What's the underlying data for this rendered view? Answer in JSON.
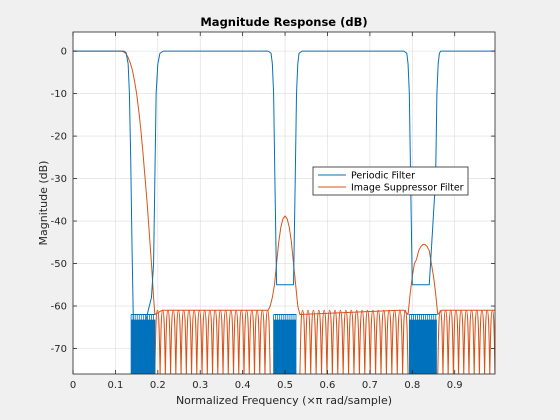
{
  "chart_data": {
    "type": "line",
    "title": "Magnitude Response (dB)",
    "xlabel": "Normalized Frequency (×π rad/sample)",
    "ylabel": "Magnitude (dB)",
    "xlim": [
      0,
      0.995
    ],
    "ylim": [
      -76,
      4.5
    ],
    "xticks": [
      0,
      0.1,
      0.2,
      0.3,
      0.4,
      0.5,
      0.6,
      0.7,
      0.8,
      0.9
    ],
    "xtick_labels": [
      "0",
      "0.1",
      "0.2",
      "0.3",
      "0.4",
      "0.5",
      "0.6",
      "0.7",
      "0.8",
      "0.9"
    ],
    "yticks": [
      0,
      -10,
      -20,
      -30,
      -40,
      -50,
      -60,
      -70
    ],
    "ytick_labels": [
      "0",
      "-10",
      "-20",
      "-30",
      "-40",
      "-50",
      "-60",
      "-70"
    ],
    "grid": true,
    "legend_position": "right",
    "series": [
      {
        "name": "Periodic Filter",
        "color": "#0072bd",
        "x": [
          0,
          0.12,
          0.125,
          0.13,
          0.133,
          0.136,
          0.139,
          0.142,
          0.145,
          0.175,
          0.185,
          0.19,
          0.193,
          0.196,
          0.2,
          0.205,
          0.213,
          0.22,
          0.46,
          0.467,
          0.47,
          0.473,
          0.476,
          0.48,
          0.52,
          0.524,
          0.527,
          0.53,
          0.533,
          0.54,
          0.78,
          0.787,
          0.79,
          0.793,
          0.796,
          0.8,
          0.84,
          0.855,
          0.858,
          0.861,
          0.864,
          0.867,
          0.875,
          0.885,
          0.995
        ],
        "y": [
          0,
          0,
          -0.3,
          -3,
          -10,
          -25,
          -45,
          -62,
          -76,
          -62,
          -58,
          -50,
          -30,
          -10,
          -3,
          -0.5,
          0,
          0,
          0,
          -0.5,
          -3,
          -10,
          -30,
          -55,
          -55,
          -30,
          -10,
          -3,
          -0.5,
          0,
          0,
          -0.5,
          -3,
          -10,
          -30,
          -55,
          -55,
          -30,
          -10,
          -3,
          -0.5,
          0,
          0,
          0,
          0
        ]
      },
      {
        "name": "Image Suppressor Filter",
        "color": "#d95319",
        "x": [
          0,
          0.115,
          0.12,
          0.125,
          0.13,
          0.135,
          0.14,
          0.145,
          0.15,
          0.155,
          0.16,
          0.165,
          0.17,
          0.175,
          0.18,
          0.185,
          0.19,
          0.193,
          0.21,
          0.45,
          0.46,
          0.465,
          0.47,
          0.475,
          0.48,
          0.485,
          0.49,
          0.495,
          0.5,
          0.505,
          0.51,
          0.515,
          0.52,
          0.525,
          0.53,
          0.535,
          0.77,
          0.78,
          0.79,
          0.795,
          0.8,
          0.805,
          0.81,
          0.815,
          0.82,
          0.825,
          0.83,
          0.835,
          0.84,
          0.845,
          0.85,
          0.855,
          0.86,
          0.87,
          0.995
        ],
        "y": [
          0,
          0,
          -0.2,
          -0.6,
          -1.5,
          -2.8,
          -4.5,
          -7,
          -10,
          -14,
          -18.5,
          -24,
          -30,
          -36,
          -43,
          -50,
          -58,
          -62,
          -61,
          -61,
          -61,
          -60,
          -58,
          -55,
          -50,
          -45,
          -41.5,
          -39.5,
          -38.8,
          -39.5,
          -41.5,
          -45,
          -50,
          -55,
          -60,
          -62,
          -61,
          -61,
          -62,
          -57,
          -53,
          -50,
          -49,
          -47,
          -46,
          -45.5,
          -45.5,
          -46,
          -47,
          -50,
          -53,
          -57,
          -62,
          -61,
          -61
        ]
      }
    ],
    "annotations": [
      "Periodic Filter stopband ripple: dense oscillation between about -62 dB and the bottom of the axis over 0.133-0.195, 0.473-0.527 and 0.793-0.858",
      "Image Suppressor Filter stopband: sidelobes peaking near -61 dB every ~0.0125 with nulls below -76 dB"
    ]
  }
}
